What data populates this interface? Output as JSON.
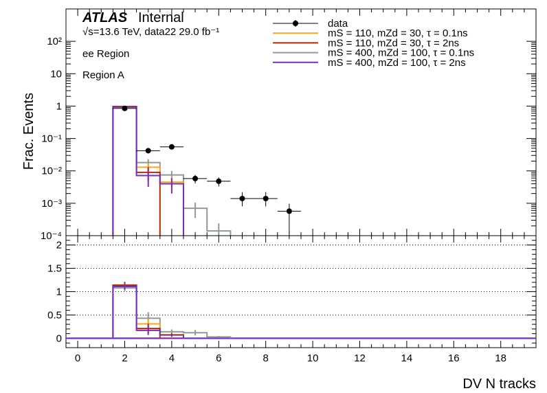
{
  "header": {
    "atlas": "ATLAS",
    "status": "Internal",
    "energy_line": "√s=13.6 TeV, data22 29.0 fb⁻¹",
    "region_line1": "ee Region",
    "region_line2": "Region A"
  },
  "legend": [
    {
      "label": "data",
      "color": "#000000",
      "style": "marker"
    },
    {
      "label": "mS = 110, mZd = 30, τ = 0.1ns",
      "color": "#f5a623",
      "style": "line"
    },
    {
      "label": "mS = 110, mZd = 30, τ = 2ns",
      "color": "#b22a00",
      "style": "line"
    },
    {
      "label": "mS = 400, mZd = 100, τ = 0.1ns",
      "color": "#8e9a9a",
      "style": "line"
    },
    {
      "label": "mS = 400, mZd = 100, τ = 2ns",
      "color": "#7b2db8",
      "style": "line"
    }
  ],
  "chart_data": [
    {
      "type": "line",
      "panel": "main",
      "ylabel": "Frac. Events",
      "yscale": "log",
      "ylim": [
        0.0001,
        1000
      ],
      "xlim": [
        -0.5,
        19.5
      ],
      "yticks": [
        {
          "value": 0.0001,
          "label": "10⁻⁴"
        },
        {
          "value": 0.001,
          "label": "10⁻³"
        },
        {
          "value": 0.01,
          "label": "10⁻²"
        },
        {
          "value": 0.1,
          "label": "10⁻¹"
        },
        {
          "value": 1,
          "label": "1"
        },
        {
          "value": 10,
          "label": "10"
        },
        {
          "value": 100,
          "label": "10²"
        }
      ],
      "data_points": {
        "name": "data",
        "x": [
          2,
          3,
          4,
          5,
          6,
          7,
          8,
          9
        ],
        "y": [
          0.85,
          0.042,
          0.055,
          0.0058,
          0.0048,
          0.0014,
          0.0014,
          0.00057
        ],
        "yerr_low": [
          0.05,
          0.006,
          0.007,
          0.0017,
          0.0015,
          0.0006,
          0.0006,
          0.00045
        ],
        "yerr_high": [
          0.05,
          0.006,
          0.007,
          0.0017,
          0.0015,
          0.0008,
          0.0008,
          0.0004
        ]
      },
      "series": [
        {
          "name": "mS = 110, mZd = 30, τ = 0.1ns",
          "color": "#f5a623",
          "edges": [
            1.5,
            2.5,
            3.5,
            4.5
          ],
          "values": [
            0.95,
            0.013,
            0.0045
          ],
          "errors": [
            0.03,
            0.004,
            0.002
          ]
        },
        {
          "name": "mS = 110, mZd = 30, τ = 2ns",
          "color": "#b22a00",
          "edges": [
            1.5,
            2.5,
            3.5
          ],
          "values": [
            0.97,
            0.009
          ],
          "errors": [
            0.03,
            0.004
          ]
        },
        {
          "name": "mS = 400, mZd = 100, τ = 0.1ns",
          "color": "#8e9a9a",
          "edges": [
            1.5,
            2.5,
            3.5,
            4.5,
            5.5,
            6.5
          ],
          "values": [
            0.92,
            0.018,
            0.0075,
            0.0007,
            0.00014
          ],
          "errors": [
            0.03,
            0.005,
            0.0025,
            0.00035,
            0.0001
          ]
        },
        {
          "name": "mS = 400, mZd = 100, τ = 2ns",
          "color": "#7b2db8",
          "edges": [
            1.5,
            2.5,
            3.5,
            4.5
          ],
          "values": [
            0.95,
            0.0072,
            0.004
          ],
          "errors": [
            0.03,
            0.004,
            0.002
          ]
        }
      ]
    },
    {
      "type": "line",
      "panel": "ratio",
      "xlabel": "DV N tracks",
      "ylim": [
        -0.2,
        2.2
      ],
      "xlim": [
        -0.5,
        19.5
      ],
      "yticks": [
        0,
        0.5,
        1,
        1.5,
        2
      ],
      "xticks": [
        0,
        2,
        4,
        6,
        8,
        10,
        12,
        14,
        16,
        18
      ],
      "grid_y": [
        0.5,
        1,
        1.5,
        2
      ],
      "series": [
        {
          "name": "mS = 110, mZd = 30, τ = 0.1ns",
          "color": "#f5a623",
          "edges": [
            1.5,
            2.5,
            3.5,
            4.5
          ],
          "values": [
            1.12,
            0.31,
            0.08
          ],
          "errors": [
            0.07,
            0.1,
            0.04
          ]
        },
        {
          "name": "mS = 110, mZd = 30, τ = 2ns",
          "color": "#b22a00",
          "edges": [
            1.5,
            2.5,
            3.5
          ],
          "values": [
            1.14,
            0.21
          ],
          "errors": [
            0.07,
            0.1
          ]
        },
        {
          "name": "mS = 400, mZd = 100, τ = 0.1ns",
          "color": "#8e9a9a",
          "edges": [
            1.5,
            2.5,
            3.5,
            4.5,
            5.5,
            6.5
          ],
          "values": [
            1.08,
            0.43,
            0.14,
            0.12,
            0.03
          ],
          "errors": [
            0.07,
            0.13,
            0.05,
            0.06,
            0.02
          ]
        },
        {
          "name": "mS = 400, mZd = 100, τ = 2ns",
          "color": "#7b2db8",
          "edges": [
            1.5,
            2.5,
            3.5,
            4.5
          ],
          "values": [
            1.11,
            0.17,
            0.07
          ],
          "errors": [
            0.07,
            0.1,
            0.04
          ]
        }
      ]
    }
  ]
}
